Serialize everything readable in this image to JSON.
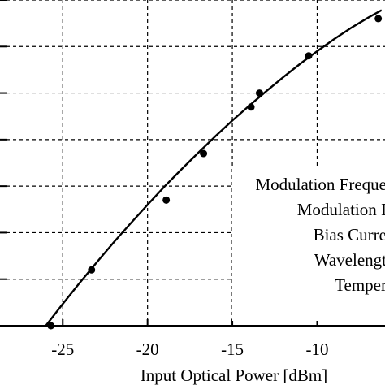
{
  "chart_data": {
    "type": "scatter",
    "xlabel": "Input Optical Power [dBm]",
    "ylabel": "",
    "title": "",
    "xlim": [
      -28.7,
      -6
    ],
    "ylim": [
      0,
      7
    ],
    "xticks": [
      -25,
      -20,
      -15,
      -10
    ],
    "xtick_labels": [
      "-25",
      "-20",
      "-15",
      "-10"
    ],
    "yticks": [
      0,
      1,
      2,
      3,
      4,
      5,
      6,
      7
    ],
    "grid": true,
    "grid_style": "dashed",
    "series": [
      {
        "kind": "points",
        "color": "#000000",
        "x": [
          -25.7,
          -23.3,
          -18.9,
          -16.7,
          -13.9,
          -13.4,
          -10.5,
          -6.4
        ],
        "y": [
          0.0,
          1.2,
          2.7,
          3.7,
          4.7,
          5.0,
          5.8,
          6.6
        ]
      },
      {
        "kind": "fit-line",
        "color": "#000000",
        "x": [
          -26.0,
          -25.0,
          -24.0,
          -23.0,
          -22.0,
          -21.0,
          -20.0,
          -19.0,
          -18.0,
          -17.0,
          -16.0,
          -15.0,
          -14.0,
          -13.0,
          -12.0,
          -11.0,
          -10.0,
          -9.0,
          -8.0,
          -7.0,
          -6.2
        ],
        "y": [
          0.0,
          0.47,
          0.92,
          1.36,
          1.79,
          2.2,
          2.6,
          2.99,
          3.36,
          3.72,
          4.07,
          4.41,
          4.73,
          5.04,
          5.34,
          5.63,
          5.9,
          6.16,
          6.4,
          6.62,
          6.78
        ]
      }
    ],
    "annotation_lines": [
      "Modulation Freque",
      "Modulation I",
      "Bias Curre",
      "Wavelengt",
      "Temper"
    ]
  }
}
